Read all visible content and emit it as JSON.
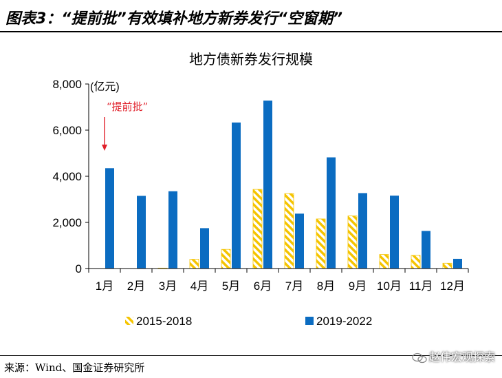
{
  "header": {
    "figure_title": "图表3：“提前批”有效填补地方新券发行“空窗期”"
  },
  "footer": {
    "source": "来源：Wind、国金证券研究所",
    "watermark": "赵伟宏观探索"
  },
  "colors": {
    "series_2015_2018": "#f5c400",
    "series_2019_2022": "#0b6cc1",
    "annotation": "#e0202a",
    "axis": "#000000"
  },
  "chart_data": {
    "type": "bar",
    "title": "地方债新券发行规模",
    "unit_label": "(亿元)",
    "categories": [
      "1月",
      "2月",
      "3月",
      "4月",
      "5月",
      "6月",
      "7月",
      "8月",
      "9月",
      "10月",
      "11月",
      "12月"
    ],
    "y_ticks": [
      "0",
      "2,000",
      "4,000",
      "6,000",
      "8,000"
    ],
    "ylim": [
      0,
      8000
    ],
    "series": [
      {
        "name": "2015-2018",
        "pattern": "hatched",
        "values": [
          0,
          0,
          20,
          400,
          830,
          3430,
          3250,
          2150,
          2280,
          610,
          570,
          230
        ]
      },
      {
        "name": "2019-2022",
        "pattern": "solid",
        "values": [
          4350,
          3150,
          3350,
          1750,
          6330,
          7280,
          2380,
          4820,
          3270,
          3160,
          1630,
          420
        ]
      }
    ],
    "annotation": {
      "text": "“提前批”",
      "category": "1月",
      "arrow": "down"
    },
    "legend_position": "bottom",
    "grid": false
  }
}
